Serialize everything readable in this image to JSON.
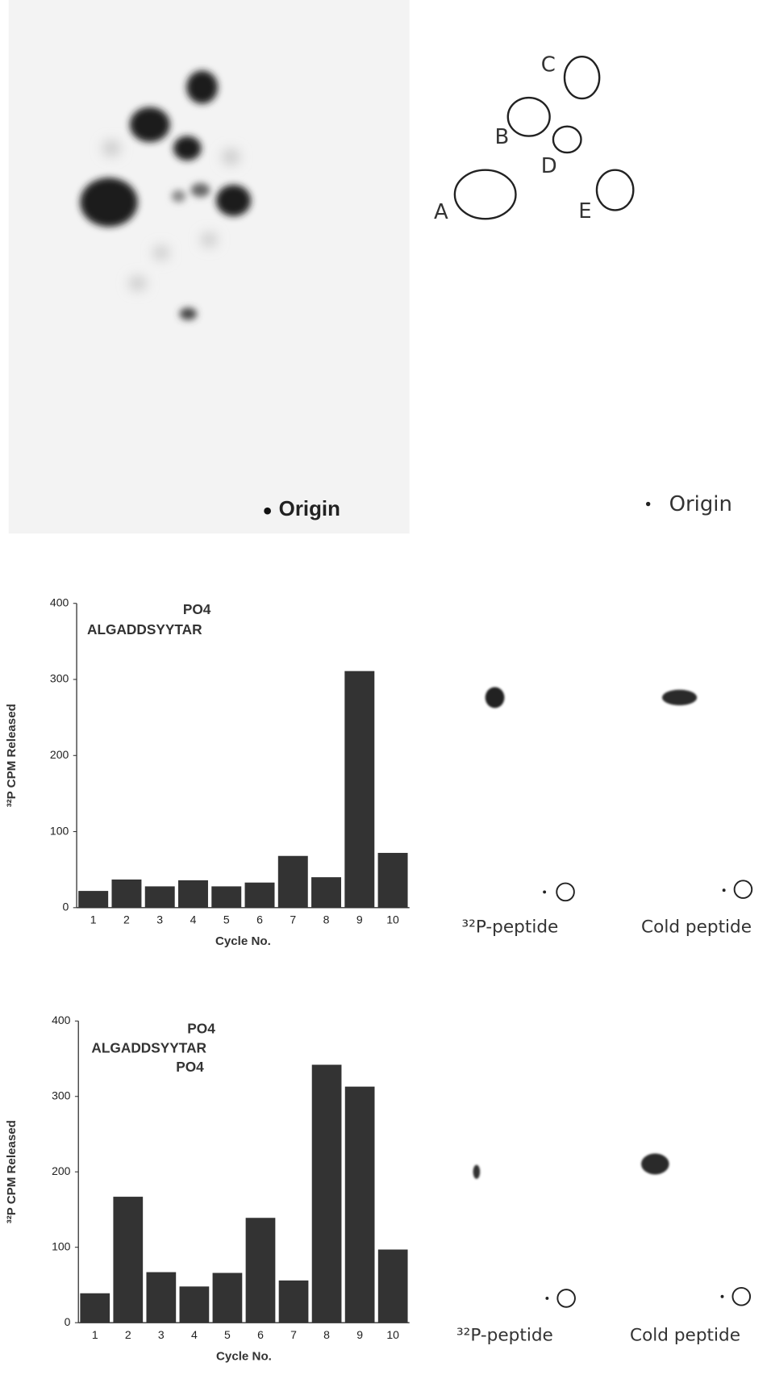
{
  "autoradiograph": {
    "origin_label": "Origin"
  },
  "diagram": {
    "spots": [
      "A",
      "B",
      "C",
      "D",
      "E"
    ],
    "origin_label": "Origin"
  },
  "peptide_panels": [
    {
      "labels": [
        "³²P-peptide",
        "Cold peptide"
      ]
    },
    {
      "labels": [
        "³²P-peptide",
        "Cold peptide"
      ]
    }
  ],
  "chart_data": [
    {
      "type": "bar",
      "annotations": [
        "PO4",
        "ALGADDSYYTAR"
      ],
      "y_label": "³²P CPM Released",
      "x_label": "Cycle No.",
      "categories": [
        "1",
        "2",
        "3",
        "4",
        "5",
        "6",
        "7",
        "8",
        "9",
        "10"
      ],
      "values": [
        22,
        37,
        28,
        36,
        28,
        33,
        68,
        40,
        311,
        72
      ],
      "color": "#333333",
      "ylim": [
        0,
        400
      ],
      "yticks": [
        0,
        100,
        200,
        300,
        400
      ]
    },
    {
      "type": "bar",
      "annotations": [
        "PO4",
        "ALGADDSYYTAR",
        "PO4"
      ],
      "y_label": "³²P CPM Released",
      "x_label": "Cycle No.",
      "categories": [
        "1",
        "2",
        "3",
        "4",
        "5",
        "6",
        "7",
        "8",
        "9",
        "10"
      ],
      "values": [
        39,
        167,
        67,
        48,
        66,
        139,
        56,
        342,
        313,
        97
      ],
      "color": "#333333",
      "ylim": [
        0,
        400
      ],
      "yticks": [
        0,
        100,
        200,
        300,
        400
      ]
    }
  ]
}
